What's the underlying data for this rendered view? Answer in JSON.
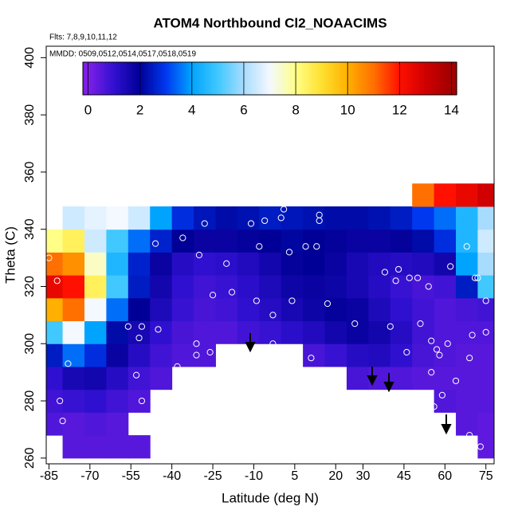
{
  "chart_data": {
    "type": "heatmap",
    "title": "ATOM4 Northbound Cl2_NOAACIMS",
    "annotations": [
      "Flts: 7,8,9,10,11,12",
      "MMDD: 0509,0512,0514,0517,0518,0519"
    ],
    "xlabel": "Latitude (deg N)",
    "ylabel": "Theta (C)",
    "xlim": [
      -86,
      78
    ],
    "ylim": [
      258,
      404
    ],
    "xticks": [
      -85,
      -70,
      -55,
      -40,
      -25,
      -10,
      5,
      20,
      30,
      45,
      60,
      75
    ],
    "yticks": [
      260,
      280,
      300,
      320,
      340,
      360,
      380,
      400
    ],
    "x": [
      -84,
      -76,
      -68,
      -60,
      -52,
      -44,
      -36,
      -28,
      -20,
      -12,
      -4,
      4,
      12,
      20,
      28,
      36,
      44,
      52,
      60,
      68,
      76
    ],
    "y": [
      264,
      272,
      280,
      288,
      296,
      304,
      312,
      320,
      328,
      336,
      344,
      352
    ],
    "values": [
      [
        null,
        0.5,
        0.5,
        0.5,
        0.5,
        null,
        null,
        null,
        null,
        null,
        null,
        null,
        null,
        null,
        null,
        null,
        null,
        null,
        null,
        null,
        0.4
      ],
      [
        0.6,
        0.5,
        0.6,
        0.5,
        null,
        null,
        null,
        null,
        null,
        null,
        null,
        null,
        null,
        null,
        null,
        null,
        null,
        null,
        null,
        0.5,
        0.4
      ],
      [
        0.8,
        0.9,
        1.0,
        0.8,
        0.6,
        null,
        null,
        null,
        null,
        null,
        null,
        null,
        null,
        null,
        null,
        null,
        null,
        null,
        0.6,
        0.5,
        0.5
      ],
      [
        1.0,
        1.5,
        1.6,
        1.2,
        0.8,
        0.6,
        null,
        null,
        null,
        null,
        null,
        null,
        null,
        null,
        0.7,
        0.6,
        0.6,
        0.5,
        0.5,
        0.5,
        0.5
      ],
      [
        2.5,
        3.5,
        2.8,
        1.8,
        1.2,
        0.8,
        0.6,
        0.6,
        null,
        null,
        null,
        null,
        0.7,
        0.9,
        1.2,
        1.3,
        1.0,
        0.7,
        0.6,
        0.5,
        0.5
      ],
      [
        5,
        7,
        4,
        2.2,
        1.5,
        1.0,
        0.7,
        0.6,
        0.6,
        0.8,
        0.9,
        1.1,
        1.3,
        1.6,
        1.8,
        1.6,
        1.2,
        0.8,
        0.6,
        0.6,
        0.6
      ],
      [
        10,
        11,
        7,
        3.5,
        2.0,
        1.4,
        0.9,
        0.7,
        0.8,
        1.0,
        1.2,
        1.5,
        1.7,
        1.9,
        1.8,
        1.4,
        1.0,
        0.8,
        0.6,
        0.7,
        0.8
      ],
      [
        12.5,
        12,
        8.5,
        5,
        2.5,
        1.6,
        1.0,
        0.8,
        0.9,
        1.1,
        1.4,
        1.7,
        1.8,
        1.7,
        1.5,
        1.2,
        0.9,
        0.7,
        0.8,
        2.5,
        5
      ],
      [
        11,
        10.5,
        7.5,
        4.5,
        2.6,
        1.8,
        1.2,
        1.0,
        1.1,
        1.3,
        1.6,
        1.9,
        2.0,
        1.8,
        1.5,
        1.3,
        1.2,
        1.3,
        1.6,
        4,
        6
      ],
      [
        8,
        8.5,
        6.5,
        5,
        3.5,
        2.6,
        2.0,
        1.8,
        1.8,
        1.9,
        2.0,
        2.1,
        2.0,
        1.9,
        1.8,
        1.8,
        1.9,
        2.2,
        2.8,
        4.5,
        6.5
      ],
      [
        null,
        6.5,
        6.8,
        7,
        6.5,
        4,
        2.8,
        2.4,
        2.2,
        2.3,
        2.5,
        2.4,
        2.3,
        2.2,
        2.2,
        2.3,
        2.5,
        3.0,
        3.5,
        4.5,
        6
      ],
      [
        null,
        null,
        null,
        null,
        null,
        null,
        null,
        null,
        null,
        null,
        null,
        null,
        null,
        null,
        null,
        null,
        null,
        11,
        12,
        12.5,
        13
      ]
    ],
    "colors": [
      "#7f1fe8",
      "#3010d0",
      "#000096",
      "#0038f0",
      "#00a4ff",
      "#40c8ff",
      "#a8dcff",
      "#f4f8ff",
      "#ffff88",
      "#ffe030",
      "#ffb000",
      "#ff7000",
      "#ff1000",
      "#d00000",
      "#a00000"
    ],
    "clim": [
      -0.2,
      14.2
    ],
    "cticks": [
      0,
      2,
      4,
      6,
      8,
      10,
      12,
      14
    ],
    "points": {
      "color": "#ffffff",
      "x": [
        -85,
        -82,
        -78,
        -81,
        -80,
        -56,
        -51,
        -52,
        -53,
        -51,
        -45,
        -46,
        -38,
        -36,
        -31,
        -31,
        -30,
        -28,
        -26,
        -25,
        -20,
        -18,
        -11,
        -9,
        -8,
        -6,
        -3,
        -3,
        0,
        3,
        1,
        4,
        4,
        9,
        13,
        14,
        17,
        11,
        14,
        27,
        38,
        40,
        42,
        43,
        46,
        47,
        50,
        51,
        54,
        55,
        57,
        58,
        55,
        61,
        59,
        56,
        58,
        64,
        62,
        68,
        69,
        70,
        71,
        75,
        73,
        72,
        62,
        69,
        75
      ],
      "y": [
        330,
        322,
        293,
        280,
        273,
        306,
        306,
        302,
        289,
        280,
        305,
        335,
        292,
        337,
        300,
        296,
        331,
        342,
        297,
        317,
        328,
        318,
        342,
        315,
        334,
        343,
        310,
        300,
        344,
        332,
        347,
        315,
        297,
        334,
        334,
        343,
        314,
        295,
        345,
        307,
        325,
        306,
        322,
        326,
        297,
        323,
        323,
        307,
        320,
        301,
        298,
        296,
        290,
        300,
        282,
        278,
        274,
        287,
        327,
        334,
        295,
        303,
        323,
        315,
        264,
        323,
        268,
        268,
        304
      ]
    }
  }
}
